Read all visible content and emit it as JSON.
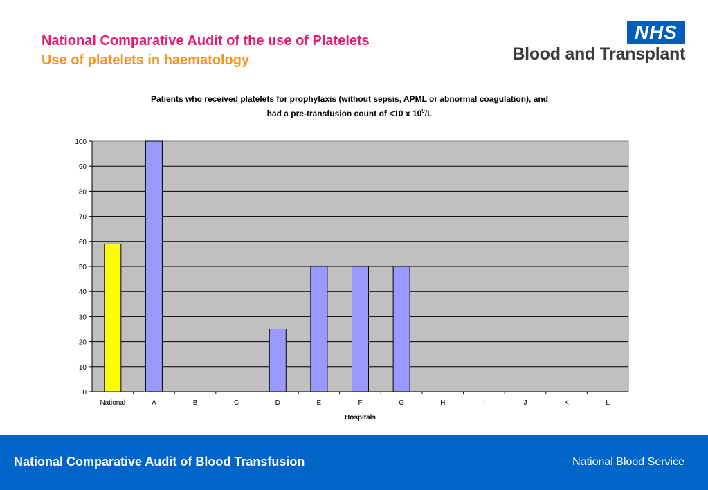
{
  "header": {
    "title": "National Comparative Audit of the use of Platelets",
    "subtitle": "Use of platelets in haematology"
  },
  "logo": {
    "badge": "NHS",
    "text": "Blood and Transplant"
  },
  "chart_data": {
    "type": "bar",
    "title_line1": "Patients who received platelets for prophylaxis (without sepsis, APML or abnormal coagulation), and",
    "title_line2_prefix": "had a pre-transfusion count of <10 x 10",
    "title_line2_sup": "9",
    "title_line2_suffix": "/L",
    "categories": [
      "National",
      "A",
      "B",
      "C",
      "D",
      "E",
      "F",
      "G",
      "H",
      "I",
      "J",
      "K",
      "L"
    ],
    "values": [
      59,
      100,
      0,
      0,
      25,
      50,
      50,
      50,
      0,
      0,
      0,
      0,
      0
    ],
    "xlabel": "Hospitals",
    "ylabel": "",
    "ylim": [
      0,
      100
    ],
    "yticks": [
      0,
      10,
      20,
      30,
      40,
      50,
      60,
      70,
      80,
      90,
      100
    ],
    "grid": true,
    "colors": {
      "plot_background": "#c0c0c0",
      "national_bar": "#ffff00",
      "hospital_bar": "#9999ff",
      "bar_outline": "#000000"
    }
  },
  "footer": {
    "left": "National Comparative Audit of Blood Transfusion",
    "right": "National Blood Service"
  }
}
